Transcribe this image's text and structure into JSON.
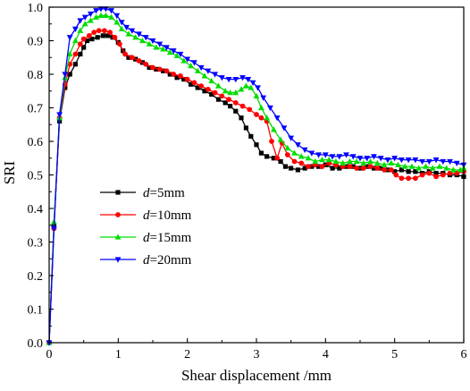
{
  "chart_data": {
    "type": "line",
    "title": "",
    "xlabel": "Shear displacement /mm",
    "ylabel": "SRI",
    "xlim": [
      0,
      6
    ],
    "ylim": [
      0,
      1.0
    ],
    "xticks": [
      "0",
      "1",
      "2",
      "3",
      "4",
      "5",
      "6"
    ],
    "yticks": [
      "0.0",
      "0.1",
      "0.2",
      "0.3",
      "0.4",
      "0.5",
      "0.6",
      "0.7",
      "0.8",
      "0.9",
      "1.0"
    ],
    "grid": false,
    "legend_position": "lower-left",
    "series": [
      {
        "name": "d=5mm",
        "name_italic": "d",
        "name_rest": "=5mm",
        "color": "#000000",
        "marker": "square",
        "points": [
          [
            0,
            0
          ],
          [
            0.07,
            0.35
          ],
          [
            0.15,
            0.66
          ],
          [
            0.23,
            0.76
          ],
          [
            0.3,
            0.8
          ],
          [
            0.38,
            0.83
          ],
          [
            0.45,
            0.86
          ],
          [
            0.5,
            0.88
          ],
          [
            0.55,
            0.9
          ],
          [
            0.62,
            0.905
          ],
          [
            0.7,
            0.91
          ],
          [
            0.78,
            0.915
          ],
          [
            0.85,
            0.915
          ],
          [
            0.92,
            0.91
          ],
          [
            1.0,
            0.895
          ],
          [
            1.07,
            0.87
          ],
          [
            1.15,
            0.85
          ],
          [
            1.25,
            0.845
          ],
          [
            1.35,
            0.835
          ],
          [
            1.45,
            0.82
          ],
          [
            1.55,
            0.815
          ],
          [
            1.65,
            0.81
          ],
          [
            1.75,
            0.8
          ],
          [
            1.85,
            0.79
          ],
          [
            1.95,
            0.785
          ],
          [
            2.05,
            0.77
          ],
          [
            2.15,
            0.76
          ],
          [
            2.25,
            0.75
          ],
          [
            2.35,
            0.74
          ],
          [
            2.45,
            0.725
          ],
          [
            2.55,
            0.715
          ],
          [
            2.62,
            0.705
          ],
          [
            2.7,
            0.69
          ],
          [
            2.78,
            0.67
          ],
          [
            2.85,
            0.64
          ],
          [
            2.92,
            0.615
          ],
          [
            3.0,
            0.59
          ],
          [
            3.07,
            0.565
          ],
          [
            3.15,
            0.555
          ],
          [
            3.25,
            0.55
          ],
          [
            3.35,
            0.54
          ],
          [
            3.42,
            0.525
          ],
          [
            3.5,
            0.52
          ],
          [
            3.6,
            0.515
          ],
          [
            3.7,
            0.52
          ],
          [
            3.8,
            0.525
          ],
          [
            3.9,
            0.525
          ],
          [
            4.0,
            0.53
          ],
          [
            4.1,
            0.52
          ],
          [
            4.2,
            0.52
          ],
          [
            4.3,
            0.525
          ],
          [
            4.4,
            0.525
          ],
          [
            4.5,
            0.52
          ],
          [
            4.6,
            0.525
          ],
          [
            4.7,
            0.52
          ],
          [
            4.8,
            0.52
          ],
          [
            4.9,
            0.515
          ],
          [
            5.0,
            0.51
          ],
          [
            5.1,
            0.515
          ],
          [
            5.2,
            0.51
          ],
          [
            5.3,
            0.51
          ],
          [
            5.4,
            0.505
          ],
          [
            5.5,
            0.51
          ],
          [
            5.6,
            0.505
          ],
          [
            5.7,
            0.505
          ],
          [
            5.8,
            0.5
          ],
          [
            5.9,
            0.5
          ],
          [
            6.0,
            0.495
          ]
        ]
      },
      {
        "name": "d=10mm",
        "name_italic": "d",
        "name_rest": "=10mm",
        "color": "#ff0000",
        "marker": "circle",
        "points": [
          [
            0,
            0
          ],
          [
            0.07,
            0.34
          ],
          [
            0.15,
            0.67
          ],
          [
            0.23,
            0.77
          ],
          [
            0.3,
            0.83
          ],
          [
            0.38,
            0.86
          ],
          [
            0.45,
            0.89
          ],
          [
            0.5,
            0.905
          ],
          [
            0.58,
            0.915
          ],
          [
            0.65,
            0.925
          ],
          [
            0.72,
            0.93
          ],
          [
            0.8,
            0.93
          ],
          [
            0.88,
            0.925
          ],
          [
            0.95,
            0.91
          ],
          [
            1.02,
            0.89
          ],
          [
            1.1,
            0.86
          ],
          [
            1.2,
            0.85
          ],
          [
            1.3,
            0.84
          ],
          [
            1.4,
            0.83
          ],
          [
            1.5,
            0.82
          ],
          [
            1.6,
            0.815
          ],
          [
            1.7,
            0.81
          ],
          [
            1.8,
            0.8
          ],
          [
            1.9,
            0.795
          ],
          [
            2.0,
            0.785
          ],
          [
            2.1,
            0.775
          ],
          [
            2.2,
            0.765
          ],
          [
            2.3,
            0.755
          ],
          [
            2.4,
            0.745
          ],
          [
            2.5,
            0.735
          ],
          [
            2.6,
            0.725
          ],
          [
            2.7,
            0.715
          ],
          [
            2.8,
            0.705
          ],
          [
            2.9,
            0.695
          ],
          [
            3.0,
            0.68
          ],
          [
            3.07,
            0.67
          ],
          [
            3.15,
            0.66
          ],
          [
            3.22,
            0.6
          ],
          [
            3.3,
            0.55
          ],
          [
            3.37,
            0.595
          ],
          [
            3.45,
            0.56
          ],
          [
            3.55,
            0.54
          ],
          [
            3.65,
            0.535
          ],
          [
            3.75,
            0.525
          ],
          [
            3.85,
            0.53
          ],
          [
            3.95,
            0.525
          ],
          [
            4.05,
            0.535
          ],
          [
            4.15,
            0.53
          ],
          [
            4.25,
            0.525
          ],
          [
            4.35,
            0.525
          ],
          [
            4.45,
            0.52
          ],
          [
            4.55,
            0.52
          ],
          [
            4.65,
            0.525
          ],
          [
            4.75,
            0.52
          ],
          [
            4.85,
            0.515
          ],
          [
            4.95,
            0.515
          ],
          [
            5.02,
            0.5
          ],
          [
            5.1,
            0.49
          ],
          [
            5.2,
            0.49
          ],
          [
            5.3,
            0.49
          ],
          [
            5.4,
            0.5
          ],
          [
            5.5,
            0.505
          ],
          [
            5.6,
            0.495
          ],
          [
            5.7,
            0.5
          ],
          [
            5.8,
            0.505
          ],
          [
            5.9,
            0.505
          ],
          [
            6.0,
            0.51
          ]
        ]
      },
      {
        "name": "d=15mm",
        "name_italic": "d",
        "name_rest": "=15mm",
        "color": "#00dd00",
        "marker": "triangle-up",
        "points": [
          [
            0,
            0
          ],
          [
            0.07,
            0.36
          ],
          [
            0.15,
            0.67
          ],
          [
            0.23,
            0.79
          ],
          [
            0.3,
            0.86
          ],
          [
            0.38,
            0.9
          ],
          [
            0.45,
            0.93
          ],
          [
            0.52,
            0.95
          ],
          [
            0.6,
            0.96
          ],
          [
            0.68,
            0.97
          ],
          [
            0.75,
            0.975
          ],
          [
            0.82,
            0.975
          ],
          [
            0.9,
            0.97
          ],
          [
            0.98,
            0.955
          ],
          [
            1.05,
            0.935
          ],
          [
            1.15,
            0.92
          ],
          [
            1.25,
            0.91
          ],
          [
            1.35,
            0.9
          ],
          [
            1.45,
            0.89
          ],
          [
            1.55,
            0.88
          ],
          [
            1.65,
            0.875
          ],
          [
            1.75,
            0.865
          ],
          [
            1.85,
            0.855
          ],
          [
            1.95,
            0.84
          ],
          [
            2.05,
            0.825
          ],
          [
            2.15,
            0.81
          ],
          [
            2.25,
            0.795
          ],
          [
            2.35,
            0.78
          ],
          [
            2.45,
            0.765
          ],
          [
            2.55,
            0.75
          ],
          [
            2.62,
            0.745
          ],
          [
            2.7,
            0.745
          ],
          [
            2.78,
            0.755
          ],
          [
            2.85,
            0.765
          ],
          [
            2.92,
            0.76
          ],
          [
            3.0,
            0.735
          ],
          [
            3.07,
            0.7
          ],
          [
            3.15,
            0.67
          ],
          [
            3.25,
            0.635
          ],
          [
            3.35,
            0.605
          ],
          [
            3.45,
            0.58
          ],
          [
            3.55,
            0.565
          ],
          [
            3.65,
            0.555
          ],
          [
            3.75,
            0.55
          ],
          [
            3.85,
            0.54
          ],
          [
            3.95,
            0.545
          ],
          [
            4.05,
            0.545
          ],
          [
            4.15,
            0.54
          ],
          [
            4.25,
            0.535
          ],
          [
            4.35,
            0.54
          ],
          [
            4.45,
            0.54
          ],
          [
            4.55,
            0.535
          ],
          [
            4.65,
            0.54
          ],
          [
            4.75,
            0.535
          ],
          [
            4.85,
            0.53
          ],
          [
            4.95,
            0.535
          ],
          [
            5.05,
            0.53
          ],
          [
            5.15,
            0.525
          ],
          [
            5.25,
            0.525
          ],
          [
            5.35,
            0.52
          ],
          [
            5.45,
            0.525
          ],
          [
            5.55,
            0.52
          ],
          [
            5.65,
            0.525
          ],
          [
            5.75,
            0.52
          ],
          [
            5.85,
            0.515
          ],
          [
            5.95,
            0.515
          ],
          [
            6.0,
            0.52
          ]
        ]
      },
      {
        "name": "d=20mm",
        "name_italic": "d",
        "name_rest": "=20mm",
        "color": "#0000ff",
        "marker": "triangle-down",
        "points": [
          [
            0,
            0
          ],
          [
            0.07,
            0.34
          ],
          [
            0.15,
            0.68
          ],
          [
            0.23,
            0.8
          ],
          [
            0.3,
            0.91
          ],
          [
            0.38,
            0.935
          ],
          [
            0.45,
            0.96
          ],
          [
            0.52,
            0.97
          ],
          [
            0.6,
            0.98
          ],
          [
            0.68,
            0.99
          ],
          [
            0.75,
            0.995
          ],
          [
            0.82,
            0.995
          ],
          [
            0.9,
            0.99
          ],
          [
            0.98,
            0.975
          ],
          [
            1.05,
            0.955
          ],
          [
            1.12,
            0.94
          ],
          [
            1.2,
            0.93
          ],
          [
            1.3,
            0.92
          ],
          [
            1.4,
            0.91
          ],
          [
            1.5,
            0.9
          ],
          [
            1.6,
            0.89
          ],
          [
            1.7,
            0.88
          ],
          [
            1.8,
            0.87
          ],
          [
            1.9,
            0.86
          ],
          [
            2.0,
            0.845
          ],
          [
            2.1,
            0.835
          ],
          [
            2.2,
            0.82
          ],
          [
            2.3,
            0.81
          ],
          [
            2.4,
            0.8
          ],
          [
            2.5,
            0.79
          ],
          [
            2.6,
            0.785
          ],
          [
            2.7,
            0.785
          ],
          [
            2.8,
            0.79
          ],
          [
            2.88,
            0.785
          ],
          [
            2.95,
            0.775
          ],
          [
            3.02,
            0.76
          ],
          [
            3.1,
            0.73
          ],
          [
            3.2,
            0.7
          ],
          [
            3.3,
            0.67
          ],
          [
            3.4,
            0.64
          ],
          [
            3.5,
            0.61
          ],
          [
            3.6,
            0.59
          ],
          [
            3.7,
            0.575
          ],
          [
            3.8,
            0.565
          ],
          [
            3.9,
            0.56
          ],
          [
            4.0,
            0.56
          ],
          [
            4.1,
            0.555
          ],
          [
            4.2,
            0.555
          ],
          [
            4.3,
            0.56
          ],
          [
            4.4,
            0.555
          ],
          [
            4.5,
            0.55
          ],
          [
            4.6,
            0.55
          ],
          [
            4.7,
            0.555
          ],
          [
            4.8,
            0.55
          ],
          [
            4.9,
            0.545
          ],
          [
            5.0,
            0.55
          ],
          [
            5.1,
            0.545
          ],
          [
            5.2,
            0.545
          ],
          [
            5.3,
            0.545
          ],
          [
            5.4,
            0.54
          ],
          [
            5.5,
            0.54
          ],
          [
            5.6,
            0.545
          ],
          [
            5.7,
            0.54
          ],
          [
            5.8,
            0.54
          ],
          [
            5.9,
            0.535
          ],
          [
            6.0,
            0.53
          ]
        ]
      }
    ]
  }
}
